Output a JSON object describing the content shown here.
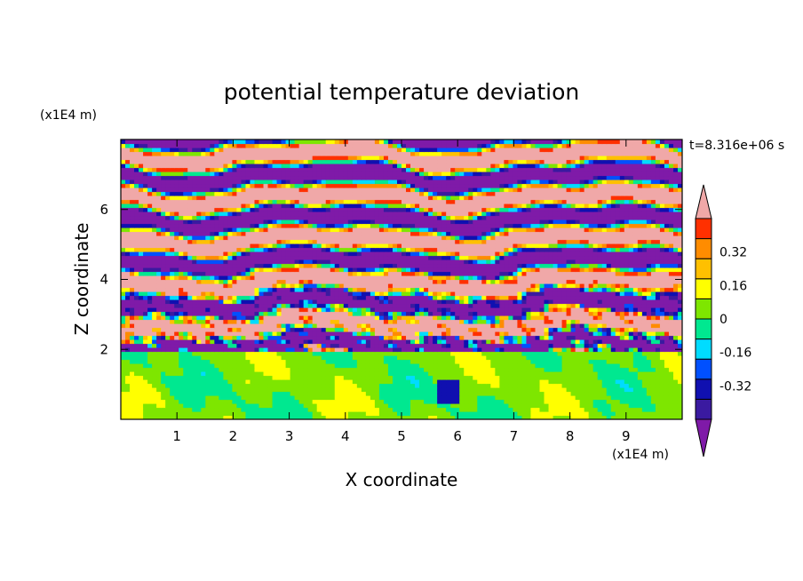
{
  "chart_data": {
    "type": "heatmap",
    "title": "potential temperature deviation",
    "xlabel": "X coordinate",
    "ylabel": "Z coordinate",
    "x_unit": "(x1E4 m)",
    "y_unit": "(x1E4 m)",
    "time_label": "t=8.316e+06 s",
    "xlim": [
      0,
      10
    ],
    "ylim": [
      0,
      8
    ],
    "x_ticks": [
      1,
      2,
      3,
      4,
      5,
      6,
      7,
      8,
      9
    ],
    "y_ticks": [
      2,
      4,
      6
    ],
    "colorbar": {
      "levels": [
        -0.48,
        -0.4,
        -0.32,
        -0.24,
        -0.16,
        -0.08,
        0,
        0.08,
        0.16,
        0.24,
        0.32,
        0.4,
        0.48
      ],
      "colors": [
        "#7f1aa8",
        "#3a1aa0",
        "#1010b0",
        "#0050ff",
        "#00dcff",
        "#00e890",
        "#7ee600",
        "#ffff00",
        "#ffc000",
        "#ff8c00",
        "#ff3000",
        "#f0a8a8"
      ],
      "tick_labels": [
        "0.32",
        "0.16",
        "0",
        "-0.16",
        "-0.32"
      ],
      "tick_values": [
        0.32,
        0.16,
        0,
        -0.16,
        -0.32
      ],
      "extend": "both"
    },
    "regions": [
      {
        "zmin": 0,
        "zmax": 2,
        "description": "near-uniform field around 0 (green)"
      },
      {
        "zmin": 2,
        "zmax": 5,
        "description": "turbulent mixing layer, full value range"
      },
      {
        "zmin": 5,
        "zmax": 8,
        "description": "alternating bands of <= -0.48 and >= 0.48"
      }
    ]
  }
}
